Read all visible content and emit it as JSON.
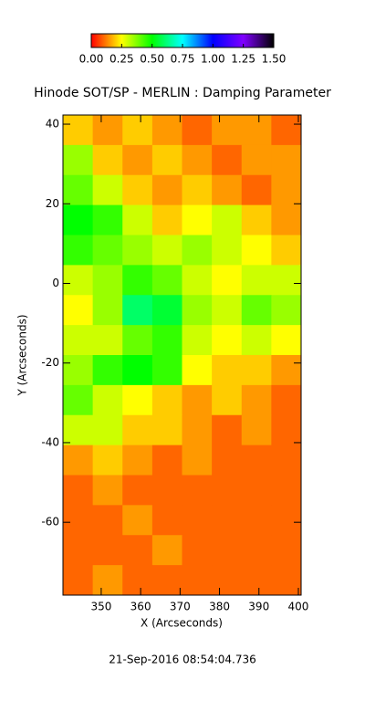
{
  "chart_data": {
    "type": "heatmap",
    "title": "Hinode SOT/SP - MERLIN : Damping Parameter",
    "x_label": "X (Arcseconds)",
    "y_label": "Y (Arcseconds)",
    "footer": "21-Sep-2016 08:54:04.736",
    "xlim": [
      340.3,
      400.7
    ],
    "ylim": [
      -78.3,
      42.3
    ],
    "xticks": [
      350,
      360,
      370,
      380,
      390,
      400
    ],
    "yticks": [
      40,
      20,
      0,
      -20,
      -40,
      -60
    ],
    "zlim": [
      0,
      1.5
    ],
    "colormap": [
      "#ff0000",
      "#ffff00",
      "#00ff00",
      "#00ffff",
      "#0000ff",
      "#8000ff",
      "#000000"
    ],
    "colorbar_ticks": [
      {
        "value": 0,
        "label": "0.00"
      },
      {
        "value": 0.25,
        "label": "0.25"
      },
      {
        "value": 0.5,
        "label": "0.50"
      },
      {
        "value": 0.75,
        "label": "0.75"
      },
      {
        "value": 1,
        "label": "1.00"
      },
      {
        "value": 1.25,
        "label": "1.25"
      },
      {
        "value": 1.5,
        "label": "1.50"
      }
    ],
    "z": [
      [
        0.2,
        0.15,
        0.2,
        0.15,
        0.1,
        0.15,
        0.15,
        0.1
      ],
      [
        0.35,
        0.2,
        0.15,
        0.2,
        0.15,
        0.1,
        0.15,
        0.15
      ],
      [
        0.4,
        0.3,
        0.2,
        0.15,
        0.2,
        0.15,
        0.1,
        0.15
      ],
      [
        0.5,
        0.45,
        0.3,
        0.2,
        0.25,
        0.3,
        0.2,
        0.15
      ],
      [
        0.45,
        0.4,
        0.35,
        0.3,
        0.35,
        0.3,
        0.25,
        0.2
      ],
      [
        0.3,
        0.35,
        0.45,
        0.4,
        0.3,
        0.25,
        0.3,
        0.3
      ],
      [
        0.25,
        0.35,
        0.6,
        0.55,
        0.35,
        0.3,
        0.4,
        0.35
      ],
      [
        0.3,
        0.3,
        0.4,
        0.45,
        0.3,
        0.25,
        0.3,
        0.25
      ],
      [
        0.35,
        0.45,
        0.5,
        0.45,
        0.25,
        0.2,
        0.2,
        0.15
      ],
      [
        0.4,
        0.3,
        0.25,
        0.2,
        0.15,
        0.2,
        0.15,
        0.1
      ],
      [
        0.3,
        0.3,
        0.2,
        0.2,
        0.15,
        0.1,
        0.15,
        0.1
      ],
      [
        0.15,
        0.2,
        0.15,
        0.1,
        0.15,
        0.1,
        0.1,
        0.1
      ],
      [
        0.1,
        0.15,
        0.1,
        0.1,
        0.1,
        0.1,
        0.1,
        0.1
      ],
      [
        0.1,
        0.1,
        0.15,
        0.1,
        0.1,
        0.1,
        0.1,
        0.1
      ],
      [
        0.1,
        0.1,
        0.1,
        0.15,
        0.1,
        0.1,
        0.1,
        0.1
      ],
      [
        0.1,
        0.15,
        0.1,
        0.1,
        0.1,
        0.1,
        0.1,
        0.1
      ]
    ]
  }
}
